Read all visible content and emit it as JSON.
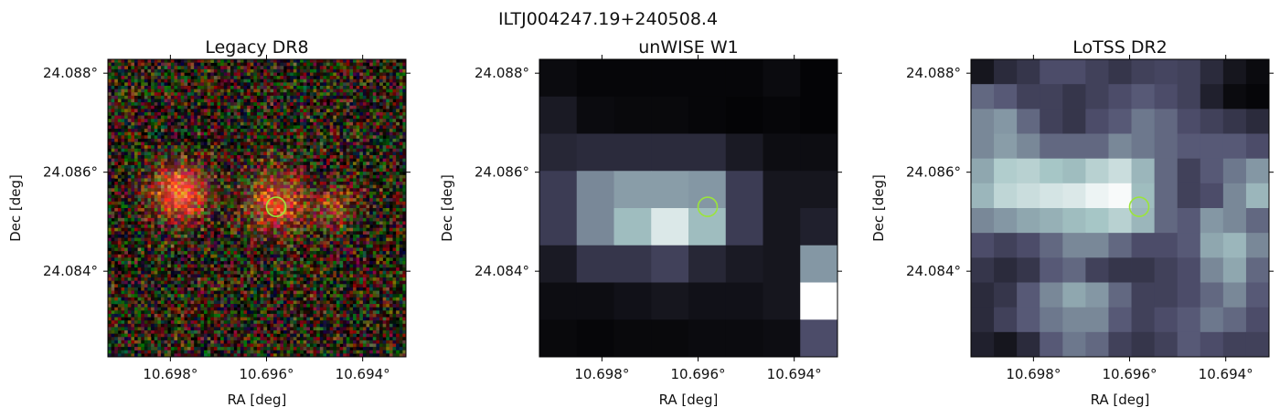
{
  "figure": {
    "suptitle": "ILTJ004247.19+240508.4"
  },
  "chart_data": [
    {
      "type": "heatmap",
      "title": "Legacy DR8",
      "colormap": "rgb-noise",
      "xlabel": "RA [deg]",
      "ylabel": "Dec [deg]",
      "xlim": [
        10.6993,
        10.6931
      ],
      "ylim": [
        24.08227,
        24.08828
      ],
      "xticks": [
        {
          "value": 10.698,
          "label": "10.698°"
        },
        {
          "value": 10.696,
          "label": "10.696°"
        },
        {
          "value": 10.694,
          "label": "10.694°"
        }
      ],
      "yticks": [
        {
          "value": 24.088,
          "label": "24.088°"
        },
        {
          "value": 24.086,
          "label": "24.086°"
        },
        {
          "value": 24.084,
          "label": "24.084°"
        }
      ],
      "marker": {
        "ra": 10.6958,
        "dec": 24.0853,
        "radius_deg": 0.0002,
        "color": "#9be53a"
      },
      "sources": [
        {
          "ra": 10.6978,
          "dec": 24.0856,
          "sigma": 0.00038,
          "amp": 1.0
        },
        {
          "ra": 10.6958,
          "dec": 24.0854,
          "sigma": 0.00042,
          "amp": 0.75
        },
        {
          "ra": 10.6946,
          "dec": 24.0853,
          "sigma": 0.0003,
          "amp": 0.45
        }
      ]
    },
    {
      "type": "heatmap",
      "title": "unWISE W1",
      "colormap": "bone",
      "xlabel": "RA [deg]",
      "ylabel": "Dec [deg]",
      "xlim": [
        10.6993,
        10.6931
      ],
      "ylim": [
        24.08227,
        24.08828
      ],
      "xticks": [
        {
          "value": 10.698,
          "label": "10.698°"
        },
        {
          "value": 10.696,
          "label": "10.696°"
        },
        {
          "value": 10.694,
          "label": "10.694°"
        }
      ],
      "yticks": [
        {
          "value": 24.088,
          "label": "24.088°"
        },
        {
          "value": 24.086,
          "label": "24.086°"
        },
        {
          "value": 24.084,
          "label": "24.084°"
        }
      ],
      "marker": {
        "ra": 10.6958,
        "dec": 24.0853,
        "radius_deg": 0.0002,
        "color": "#9be53a"
      },
      "pixels": [
        [
          0.05,
          0.03,
          0.03,
          0.03,
          0.03,
          0.03,
          0.05,
          0.02
        ],
        [
          0.12,
          0.05,
          0.04,
          0.04,
          0.03,
          0.02,
          0.03,
          0.02
        ],
        [
          0.18,
          0.2,
          0.2,
          0.2,
          0.2,
          0.12,
          0.06,
          0.06
        ],
        [
          0.28,
          0.55,
          0.62,
          0.62,
          0.6,
          0.28,
          0.1,
          0.1
        ],
        [
          0.28,
          0.55,
          0.72,
          0.9,
          0.72,
          0.28,
          0.1,
          0.15
        ],
        [
          0.12,
          0.25,
          0.25,
          0.3,
          0.18,
          0.12,
          0.1,
          0.6
        ],
        [
          0.06,
          0.06,
          0.08,
          0.1,
          0.08,
          0.08,
          0.1,
          1.0
        ],
        [
          0.04,
          0.03,
          0.04,
          0.04,
          0.05,
          0.05,
          0.06,
          0.35
        ]
      ]
    },
    {
      "type": "heatmap",
      "title": "LoTSS DR2",
      "colormap": "bone",
      "xlabel": "RA [deg]",
      "ylabel": "Dec [deg]",
      "xlim": [
        10.6993,
        10.6931
      ],
      "ylim": [
        24.08227,
        24.08828
      ],
      "xticks": [
        {
          "value": 10.698,
          "label": "10.698°"
        },
        {
          "value": 10.696,
          "label": "10.696°"
        },
        {
          "value": 10.694,
          "label": "10.694°"
        }
      ],
      "yticks": [
        {
          "value": 24.088,
          "label": "24.088°"
        },
        {
          "value": 24.086,
          "label": "24.086°"
        },
        {
          "value": 24.084,
          "label": "24.084°"
        }
      ],
      "marker": {
        "ra": 10.6958,
        "dec": 24.0853,
        "radius_deg": 0.0002,
        "color": "#9be53a"
      },
      "pixels": [
        [
          0.1,
          0.2,
          0.25,
          0.35,
          0.35,
          0.3,
          0.25,
          0.3,
          0.32,
          0.3,
          0.2,
          0.1,
          0.05
        ],
        [
          0.45,
          0.4,
          0.3,
          0.3,
          0.25,
          0.3,
          0.35,
          0.4,
          0.35,
          0.3,
          0.15,
          0.05,
          0.03
        ],
        [
          0.55,
          0.6,
          0.45,
          0.3,
          0.25,
          0.35,
          0.4,
          0.5,
          0.45,
          0.35,
          0.3,
          0.25,
          0.2
        ],
        [
          0.55,
          0.62,
          0.55,
          0.45,
          0.45,
          0.45,
          0.55,
          0.5,
          0.45,
          0.4,
          0.4,
          0.4,
          0.35
        ],
        [
          0.65,
          0.78,
          0.8,
          0.75,
          0.72,
          0.8,
          0.85,
          0.7,
          0.45,
          0.3,
          0.4,
          0.5,
          0.6
        ],
        [
          0.7,
          0.82,
          0.85,
          0.88,
          0.9,
          0.95,
          0.98,
          0.72,
          0.45,
          0.3,
          0.35,
          0.55,
          0.7
        ],
        [
          0.55,
          0.6,
          0.65,
          0.68,
          0.72,
          0.75,
          0.8,
          0.7,
          0.45,
          0.4,
          0.6,
          0.55,
          0.45
        ],
        [
          0.35,
          0.3,
          0.35,
          0.45,
          0.55,
          0.55,
          0.45,
          0.35,
          0.35,
          0.4,
          0.65,
          0.7,
          0.55
        ],
        [
          0.25,
          0.2,
          0.25,
          0.4,
          0.45,
          0.3,
          0.25,
          0.25,
          0.3,
          0.35,
          0.55,
          0.65,
          0.45
        ],
        [
          0.2,
          0.25,
          0.4,
          0.55,
          0.65,
          0.6,
          0.45,
          0.3,
          0.3,
          0.35,
          0.45,
          0.55,
          0.4
        ],
        [
          0.2,
          0.3,
          0.4,
          0.5,
          0.55,
          0.55,
          0.4,
          0.3,
          0.35,
          0.4,
          0.5,
          0.45,
          0.35
        ],
        [
          0.15,
          0.1,
          0.2,
          0.4,
          0.5,
          0.45,
          0.3,
          0.25,
          0.3,
          0.4,
          0.35,
          0.3,
          0.3
        ]
      ]
    }
  ]
}
